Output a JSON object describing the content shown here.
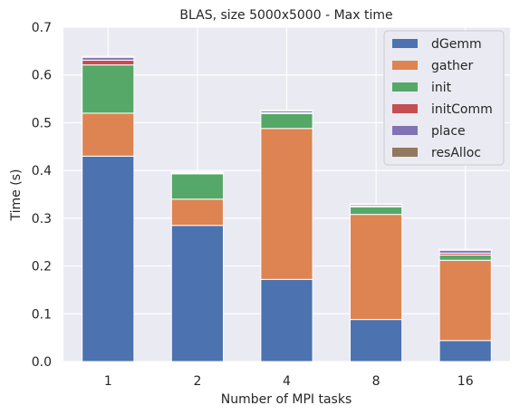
{
  "chart_data": {
    "type": "bar",
    "stacked": true,
    "title": "BLAS, size 5000x5000 - Max time",
    "xlabel": "Number of MPI tasks",
    "ylabel": "Time (s)",
    "categories": [
      "1",
      "2",
      "4",
      "8",
      "16"
    ],
    "ylim": [
      0,
      0.7
    ],
    "yticks": [
      "0.0",
      "0.1",
      "0.2",
      "0.3",
      "0.4",
      "0.5",
      "0.6",
      "0.7"
    ],
    "grid": true,
    "legend_position": "top-right",
    "series": [
      {
        "name": "dGemm",
        "color": "#4c72b0",
        "values": [
          0.43,
          0.285,
          0.172,
          0.088,
          0.044
        ]
      },
      {
        "name": "gather",
        "color": "#dd8452",
        "values": [
          0.09,
          0.055,
          0.316,
          0.22,
          0.168
        ]
      },
      {
        "name": "init",
        "color": "#55a868",
        "values": [
          0.101,
          0.053,
          0.031,
          0.016,
          0.011
        ]
      },
      {
        "name": "initComm",
        "color": "#c44e52",
        "values": [
          0.01,
          0.001,
          0.002,
          0.002,
          0.004
        ]
      },
      {
        "name": "place",
        "color": "#8172b3",
        "values": [
          0.006,
          0.002,
          0.004,
          0.003,
          0.006
        ]
      },
      {
        "name": "resAlloc",
        "color": "#937860",
        "values": [
          0.002,
          0.001,
          0.001,
          0.001,
          0.002
        ]
      }
    ]
  }
}
